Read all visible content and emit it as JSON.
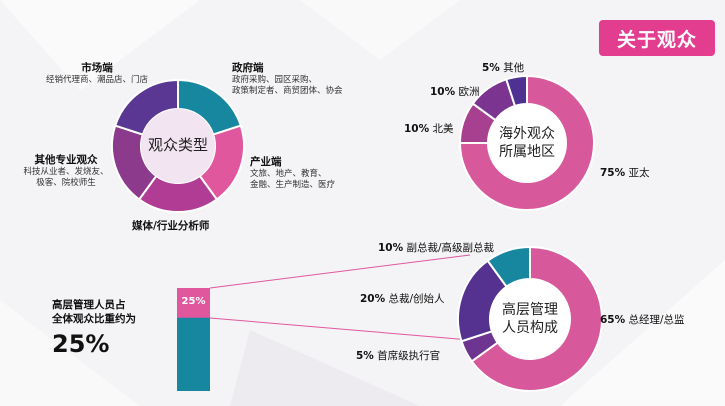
{
  "page": {
    "title": "关于观众"
  },
  "audience_types": {
    "center": "观众类型",
    "segments": [
      {
        "name": "市场端",
        "desc": "经销代理商、潮品店、门店",
        "color": "#17879f"
      },
      {
        "name": "政府端",
        "desc": [
          "政府采购、园区采购、",
          "政策制定者、商贸团体、协会"
        ],
        "color": "#e0579e"
      },
      {
        "name": "产业端",
        "desc": [
          "文旅、地产、教育、",
          "金融、生产制造、医疗"
        ],
        "color": "#b03d93"
      },
      {
        "name": "媒体/行业分析师",
        "desc": "",
        "color": "#8c3a8c"
      },
      {
        "name": "其他专业观众",
        "desc": [
          "科技从业者、发烧友、",
          "极客、院校师生"
        ],
        "color": "#5a3793"
      }
    ]
  },
  "overseas": {
    "center": [
      "海外观众",
      "所属地区"
    ],
    "segments": [
      {
        "pct": "75%",
        "name": "亚太",
        "value": 75,
        "color": "#d8589c"
      },
      {
        "pct": "10%",
        "name": "北美",
        "value": 10,
        "color": "#a6408f"
      },
      {
        "pct": "10%",
        "name": "欧洲",
        "value": 10,
        "color": "#7b3590"
      },
      {
        "pct": "5%",
        "name": "其他",
        "value": 5,
        "color": "#4e3191"
      }
    ]
  },
  "executives": {
    "center": [
      "高层管理",
      "人员构成"
    ],
    "segments": [
      {
        "pct": "65%",
        "name": "总经理/总监",
        "value": 65,
        "color": "#d8589c"
      },
      {
        "pct": "5%",
        "name": "首席级执行官",
        "value": 5,
        "color": "#6d3490"
      },
      {
        "pct": "20%",
        "name": "总裁/创始人",
        "value": 20,
        "color": "#55328f"
      },
      {
        "pct": "10%",
        "name": "副总裁/高级副总裁",
        "value": 10,
        "color": "#17879f"
      }
    ]
  },
  "exec_share": {
    "line1": "高层管理人员占",
    "line2": "全体观众比重约为",
    "big": "25%",
    "bar_label": "25%",
    "fraction": 0.25
  }
}
